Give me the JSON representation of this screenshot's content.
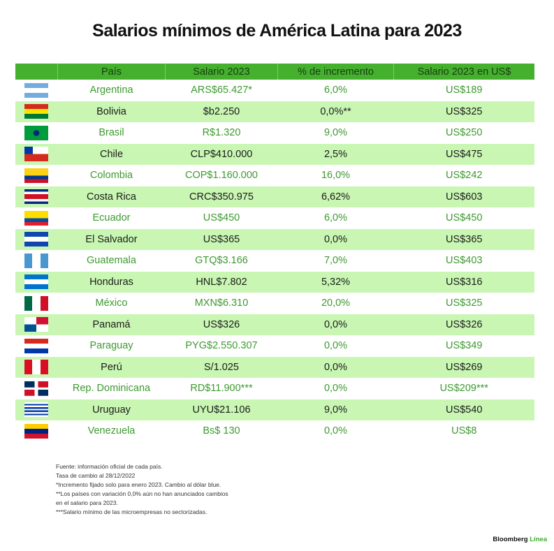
{
  "title": "Salarios mínimos de América Latina para 2023",
  "table": {
    "headers": [
      "",
      "País",
      "Salario 2023",
      "% de incremento",
      "Salario 2023 en US$"
    ],
    "rows": [
      {
        "flag": "argentina-flag",
        "pais": "Argentina",
        "salario": "ARS$65.427*",
        "incremento": "6,0%",
        "usd": "US$189"
      },
      {
        "flag": "bolivia-flag",
        "pais": "Bolivia",
        "salario": "$b2.250",
        "incremento": "0,0%**",
        "usd": "US$325"
      },
      {
        "flag": "brazil-flag",
        "pais": "Brasil",
        "salario": "R$1.320",
        "incremento": "9,0%",
        "usd": "US$250"
      },
      {
        "flag": "chile-flag",
        "pais": "Chile",
        "salario": "CLP$410.000",
        "incremento": "2,5%",
        "usd": "US$475"
      },
      {
        "flag": "colombia-flag",
        "pais": "Colombia",
        "salario": "COP$1.160.000",
        "incremento": "16,0%",
        "usd": "US$242"
      },
      {
        "flag": "costa-rica-flag",
        "pais": "Costa Rica",
        "salario": "CRC$350.975",
        "incremento": "6,62%",
        "usd": "US$603"
      },
      {
        "flag": "ecuador-flag",
        "pais": "Ecuador",
        "salario": "US$450",
        "incremento": "6,0%",
        "usd": "US$450"
      },
      {
        "flag": "el-salvador-flag",
        "pais": "El Salvador",
        "salario": "US$365",
        "incremento": "0,0%",
        "usd": "US$365"
      },
      {
        "flag": "guatemala-flag",
        "pais": "Guatemala",
        "salario": "GTQ$3.166",
        "incremento": "7,0%",
        "usd": "US$403"
      },
      {
        "flag": "honduras-flag",
        "pais": "Honduras",
        "salario": "HNL$7.802",
        "incremento": "5,32%",
        "usd": "US$316"
      },
      {
        "flag": "mexico-flag",
        "pais": "México",
        "salario": "MXN$6.310",
        "incremento": "20,0%",
        "usd": "US$325"
      },
      {
        "flag": "panama-flag",
        "pais": "Panamá",
        "salario": "US$326",
        "incremento": "0,0%",
        "usd": "US$326"
      },
      {
        "flag": "paraguay-flag",
        "pais": "Paraguay",
        "salario": "PYG$2.550.307",
        "incremento": "0,0%",
        "usd": "US$349"
      },
      {
        "flag": "peru-flag",
        "pais": "Perú",
        "salario": "S/1.025",
        "incremento": "0,0%",
        "usd": "US$269"
      },
      {
        "flag": "dominican-republic-flag",
        "pais": "Rep. Dominicana",
        "salario": "RD$11.900***",
        "incremento": "0,0%",
        "usd": "US$209***"
      },
      {
        "flag": "uruguay-flag",
        "pais": "Uruguay",
        "salario": "UYU$21.106",
        "incremento": "9,0%",
        "usd": "US$540"
      },
      {
        "flag": "venezuela-flag",
        "pais": "Venezuela",
        "salario": "Bs$ 130",
        "incremento": "0,0%",
        "usd": "US$8"
      }
    ]
  },
  "notes": [
    "Fuente: información oficial de cada país.",
    "Tasa de cambio al 28/12/2022",
    "*Incremento fijado solo para enero 2023. Cambio al dólar blue.",
    "**Los países con variación 0,0% aún no han anunciados cambios",
    "en el salario para 2023.",
    "***Salario mínimo de las microempresas no sectorizadas."
  ],
  "logo": {
    "brand": "Bloomberg",
    "sub": "Línea"
  }
}
